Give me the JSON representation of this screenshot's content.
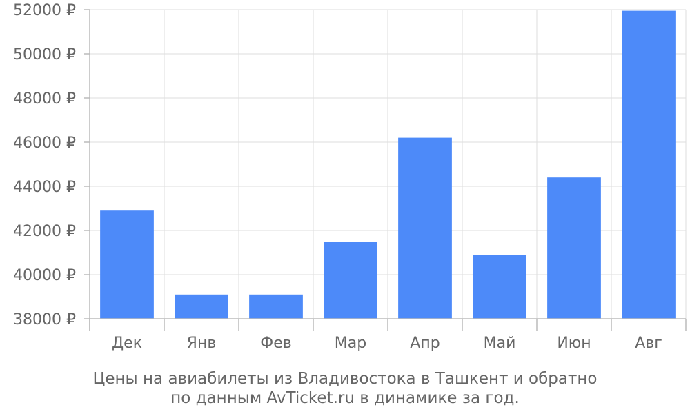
{
  "chart_data": {
    "type": "bar",
    "categories": [
      "Дек",
      "Янв",
      "Фев",
      "Мар",
      "Апр",
      "Май",
      "Июн",
      "Авг"
    ],
    "values": [
      42900,
      39100,
      39100,
      41500,
      46200,
      40900,
      44400,
      51950
    ],
    "ylim": [
      38000,
      52000
    ],
    "yticks": [
      38000,
      40000,
      42000,
      44000,
      46000,
      48000,
      50000,
      52000
    ],
    "y_unit": "₽",
    "title": "",
    "xlabel": "",
    "ylabel": "",
    "caption_lines": [
      "Цены на авиабилеты из Владивостока в Ташкент и обратно",
      "по данным AvTicket.ru в динамике за год."
    ],
    "bar_color": "#4d8af9",
    "grid": true,
    "legend": "none"
  }
}
